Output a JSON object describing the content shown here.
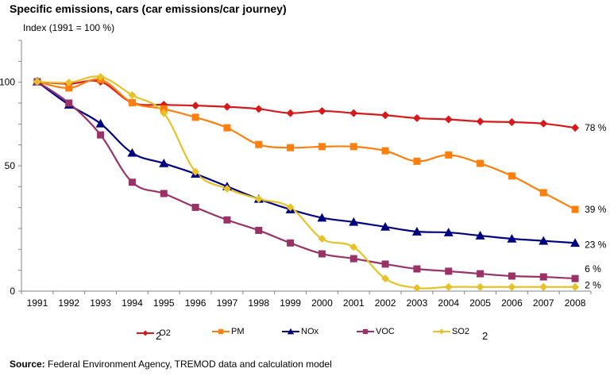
{
  "chart_data": {
    "type": "line",
    "title": "Specific emissions, cars (car emissions/car journey)",
    "ylabel": "Index (1991 = 100 %)",
    "xlabel": "",
    "x": [
      "1991",
      "1992",
      "1993",
      "1994",
      "1995",
      "1996",
      "1997",
      "1998",
      "1999",
      "2000",
      "2001",
      "2002",
      "2003",
      "2004",
      "2005",
      "2006",
      "2007",
      "2008"
    ],
    "yticks": [
      "0",
      "50",
      "100"
    ],
    "ylim": [
      0,
      125
    ],
    "grid": false,
    "legend_position": "bottom",
    "series": [
      {
        "name": "CO2",
        "legend_label": "O2",
        "legend_overlay": "2",
        "color": "#d7191c",
        "marker": "diamond",
        "values": [
          100,
          99,
          100,
          90,
          89,
          88.6,
          88,
          87,
          85,
          86,
          85,
          84,
          82.6,
          82,
          81,
          80.7,
          80,
          78
        ],
        "end_label": "78 %"
      },
      {
        "name": "PM",
        "legend_label": "PM",
        "color": "#ff7f0e",
        "marker": "square",
        "values": [
          100,
          97,
          101,
          90,
          87,
          83,
          78,
          70,
          68.5,
          69,
          69,
          67,
          62,
          65,
          61,
          55,
          47,
          39
        ],
        "end_label": "39 %"
      },
      {
        "name": "NOx",
        "legend_label": "NOx",
        "color": "#000080",
        "marker": "triangle",
        "values": [
          100,
          89,
          80,
          66,
          61,
          56,
          50,
          44,
          39,
          35,
          33,
          30.7,
          28.4,
          28,
          26.5,
          25,
          24,
          23
        ],
        "end_label": "23 %"
      },
      {
        "name": "VOC",
        "legend_label": "VOC",
        "color": "#993366",
        "marker": "square",
        "values": [
          100,
          89.8,
          74.6,
          52,
          46.6,
          40,
          34,
          29,
          23,
          17.8,
          15.5,
          12.9,
          10.6,
          9.5,
          8.3,
          7.2,
          6.8,
          6
        ],
        "end_label": "6 %"
      },
      {
        "name": "SO2",
        "legend_label": "SO2",
        "legend_extra": "2",
        "color": "#e6c229",
        "marker": "diamond",
        "values": [
          100,
          99.6,
          102.3,
          93.6,
          85,
          57,
          48.9,
          44,
          40,
          25,
          21,
          6,
          1.5,
          2,
          2,
          2,
          2,
          2
        ],
        "end_label": "2 %"
      }
    ]
  },
  "source": {
    "prefix": "Source:",
    "text": " Federal Environment Agency, TREMOD data and calculation model"
  }
}
